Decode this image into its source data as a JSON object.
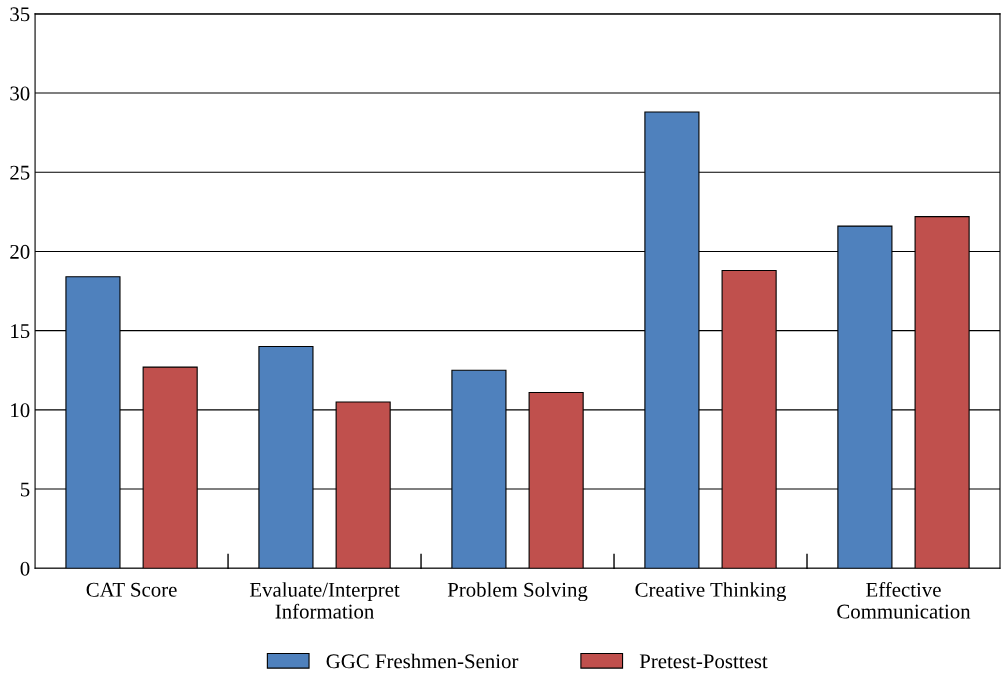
{
  "chart_data": {
    "type": "bar",
    "categories": [
      "CAT Score",
      "Evaluate/Interpret\nInformation",
      "Problem Solving",
      "Creative Thinking",
      "Effective\nCommunication"
    ],
    "series": [
      {
        "name": "GGC Freshmen-Senior",
        "color": "#4f81bd",
        "values": [
          18.4,
          14.0,
          12.5,
          28.8,
          21.6
        ]
      },
      {
        "name": "Pretest-Posttest",
        "color": "#c0504d",
        "values": [
          12.7,
          10.5,
          11.1,
          18.8,
          22.2
        ]
      }
    ],
    "ylim": [
      0,
      35
    ],
    "yticks": [
      0,
      5,
      10,
      15,
      20,
      25,
      30,
      35
    ],
    "grid": "y",
    "legend": "bottom"
  }
}
